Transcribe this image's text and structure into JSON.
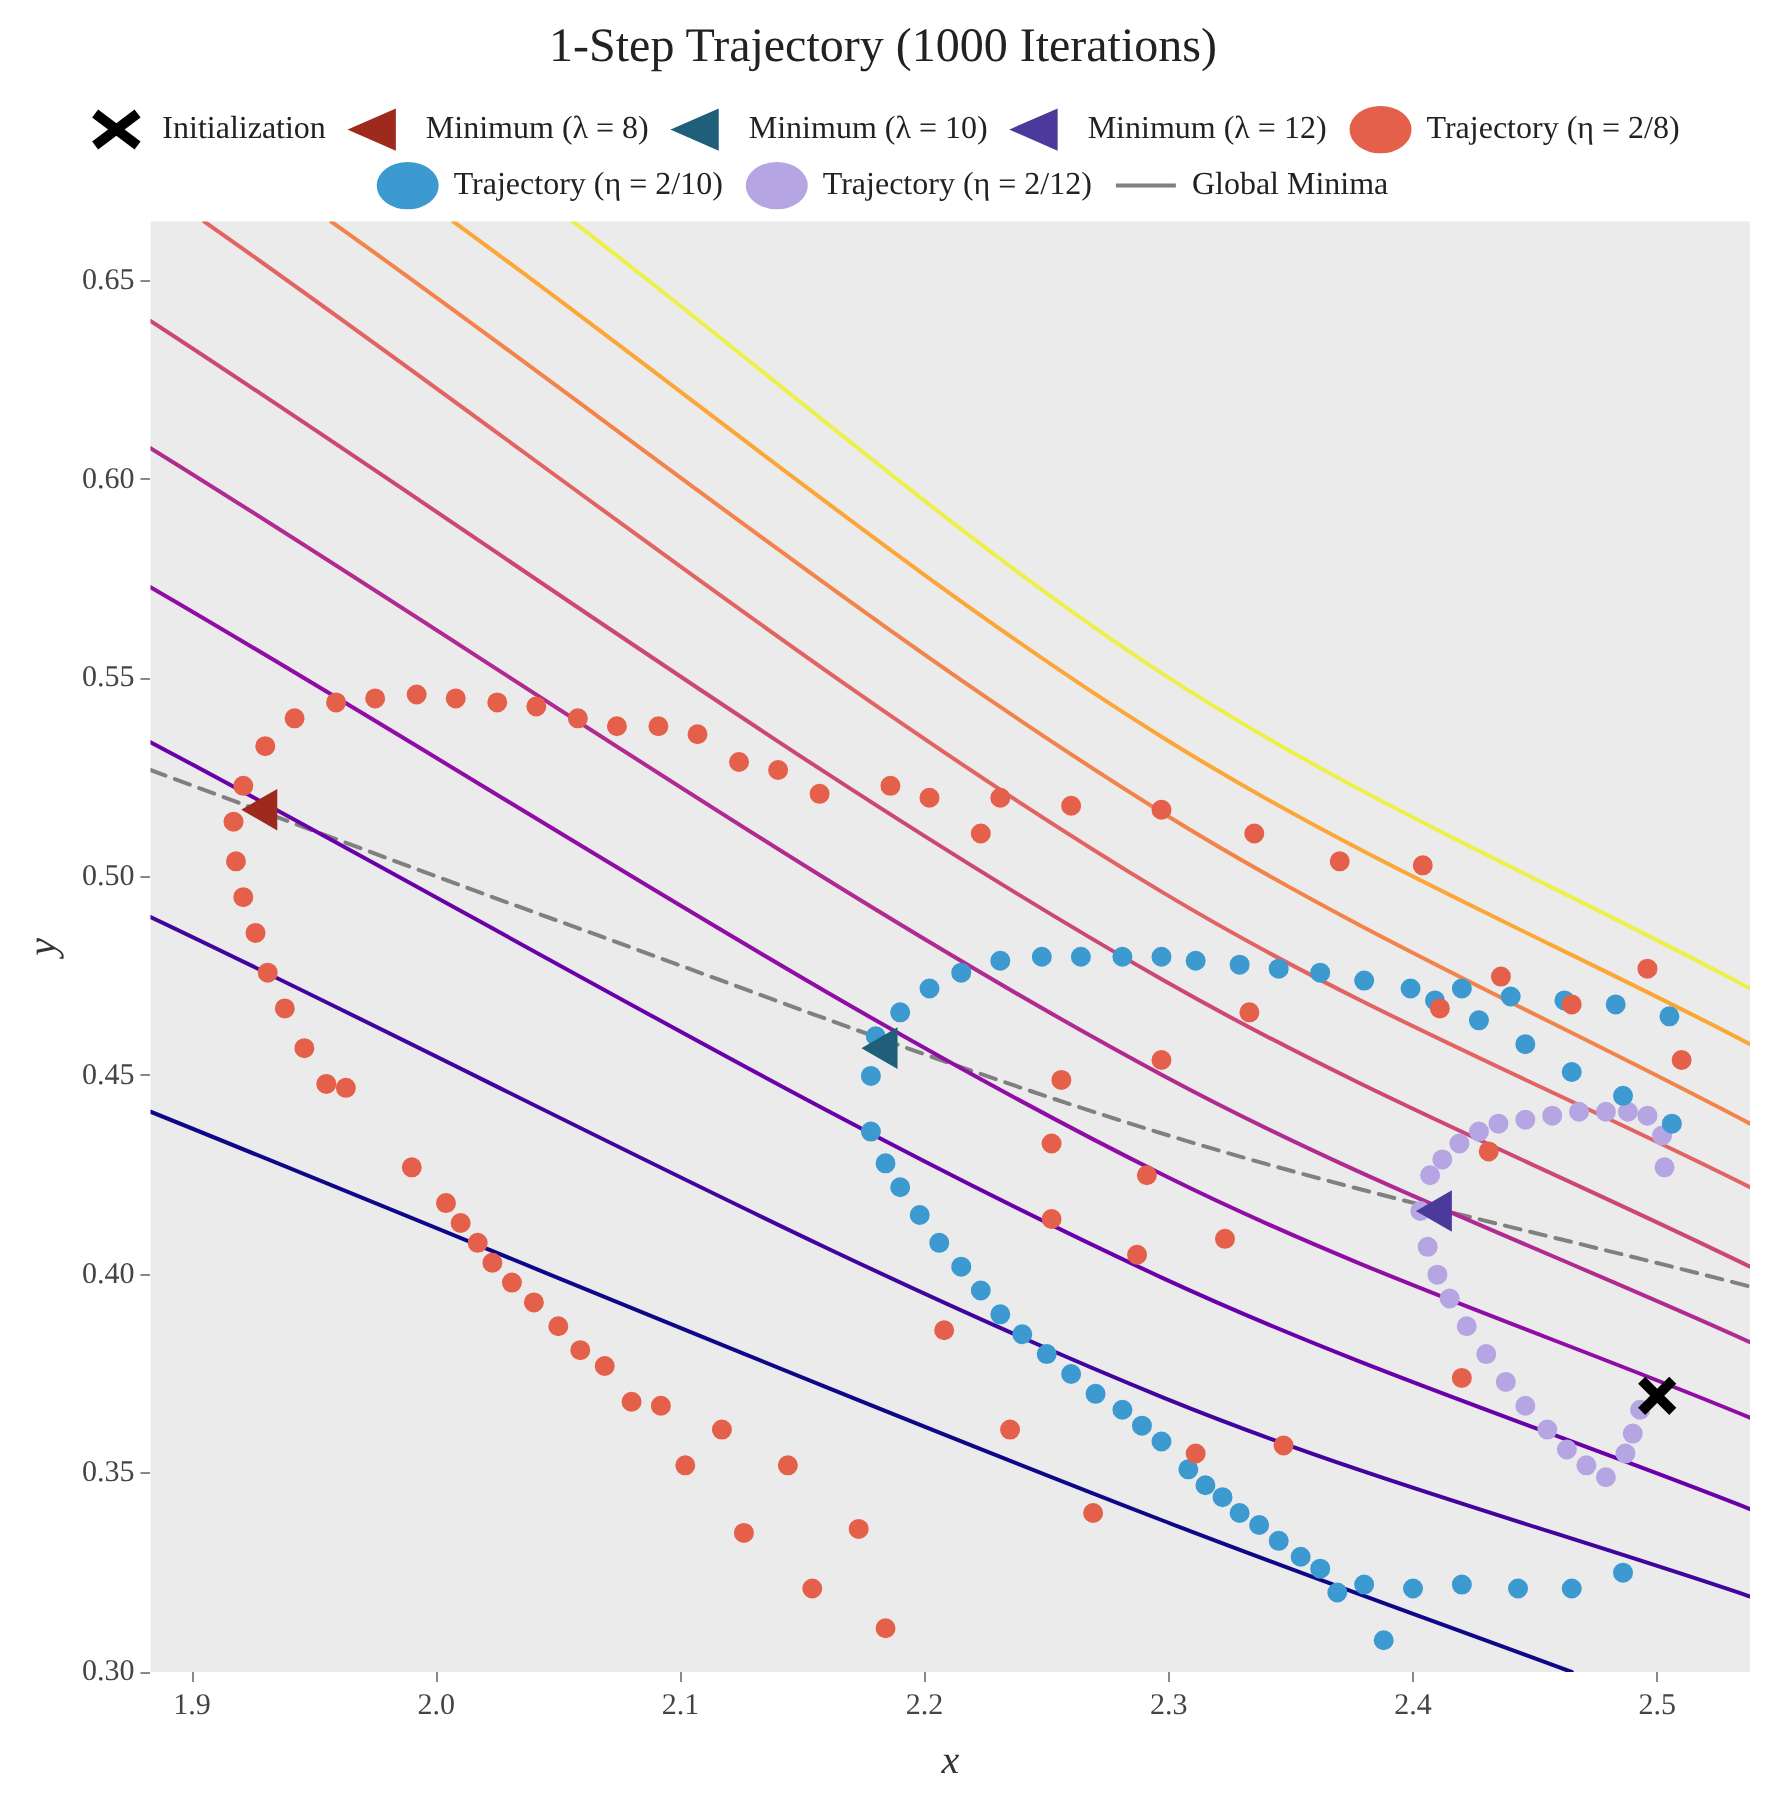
{
  "chart_data": {
    "type": "scatter",
    "title": "1-Step Trajectory (1000 Iterations)",
    "xlabel": "x",
    "ylabel": "y",
    "xlim": [
      1.883,
      2.538
    ],
    "ylim": [
      0.3,
      0.665
    ],
    "xticks": [
      {
        "value": 1.9,
        "label": "1.9"
      },
      {
        "value": 2.0,
        "label": "2.0"
      },
      {
        "value": 2.1,
        "label": "2.1"
      },
      {
        "value": 2.2,
        "label": "2.2"
      },
      {
        "value": 2.3,
        "label": "2.3"
      },
      {
        "value": 2.4,
        "label": "2.4"
      },
      {
        "value": 2.5,
        "label": "2.5"
      }
    ],
    "yticks": [
      {
        "value": 0.3,
        "label": "0.30"
      },
      {
        "value": 0.35,
        "label": "0.35"
      },
      {
        "value": 0.4,
        "label": "0.40"
      },
      {
        "value": 0.45,
        "label": "0.45"
      },
      {
        "value": 0.5,
        "label": "0.50"
      },
      {
        "value": 0.55,
        "label": "0.55"
      },
      {
        "value": 0.6,
        "label": "0.60"
      },
      {
        "value": 0.65,
        "label": "0.65"
      }
    ],
    "legend": "top",
    "series": [
      {
        "type": "line",
        "marker": "none",
        "color": "#0d0887",
        "x": [
          1.883,
          2.298,
          2.465
        ],
        "values": [
          0.441,
          0.338,
          0.3
        ]
      },
      {
        "type": "line",
        "marker": "none",
        "color": "#41049d",
        "x": [
          1.883,
          2.298,
          2.538
        ],
        "values": [
          0.49,
          0.369,
          0.319
        ]
      },
      {
        "type": "line",
        "marker": "none",
        "color": "#6a00a8",
        "x": [
          1.883,
          2.298,
          2.538
        ],
        "values": [
          0.534,
          0.399,
          0.341
        ]
      },
      {
        "type": "line",
        "marker": "none",
        "color": "#8f0da4",
        "x": [
          1.883,
          2.298,
          2.538
        ],
        "values": [
          0.573,
          0.425,
          0.364
        ]
      },
      {
        "type": "line",
        "marker": "none",
        "color": "#b12a90",
        "x": [
          1.883,
          2.298,
          2.538
        ],
        "values": [
          0.608,
          0.45,
          0.383
        ]
      },
      {
        "type": "line",
        "marker": "none",
        "color": "#cc4778",
        "x": [
          1.883,
          2.298,
          2.538
        ],
        "values": [
          0.64,
          0.474,
          0.402
        ]
      },
      {
        "type": "line",
        "marker": "none",
        "color": "#e16462",
        "x": [
          1.905,
          2.298,
          2.538
        ],
        "values": [
          0.665,
          0.496,
          0.422
        ]
      },
      {
        "type": "line",
        "marker": "none",
        "color": "#f2844b",
        "x": [
          1.957,
          2.298,
          2.538
        ],
        "values": [
          0.665,
          0.516,
          0.438
        ]
      },
      {
        "type": "line",
        "marker": "none",
        "color": "#fca636",
        "x": [
          2.007,
          2.298,
          2.538
        ],
        "values": [
          0.665,
          0.535,
          0.458
        ]
      },
      {
        "type": "line",
        "marker": "none",
        "color": "#eef04a",
        "x": [
          2.056,
          2.298,
          2.538
        ],
        "values": [
          0.665,
          0.551,
          0.472
        ]
      },
      {
        "type": "line",
        "marker": "none",
        "line_style": "dashed",
        "name": "Global Minima",
        "color": "#808080",
        "x": [
          1.883,
          2.05,
          2.3,
          2.538
        ],
        "values": [
          0.527,
          0.489,
          0.435,
          0.397
        ]
      },
      {
        "type": "scatter",
        "marker": "triangle",
        "name": "Minimum (λ = 8)",
        "color": "#9e2a1e",
        "x": [
          1.93
        ],
        "values": [
          0.517
        ]
      },
      {
        "type": "scatter",
        "marker": "triangle",
        "name": "Minimum (λ = 10)",
        "color": "#1f5f7a",
        "x": [
          2.184
        ],
        "values": [
          0.457
        ]
      },
      {
        "type": "scatter",
        "marker": "triangle",
        "name": "Minimum (λ = 12)",
        "color": "#4b3a9b",
        "x": [
          2.411
        ],
        "values": [
          0.416
        ]
      },
      {
        "type": "scatter",
        "marker": "cross",
        "name": "Initialization",
        "color": "#000000",
        "x": [
          2.5
        ],
        "values": [
          0.3695
        ]
      },
      {
        "type": "scatter",
        "marker": "circle",
        "name": "Trajectory (η = 2/8)",
        "color": "#e5604a",
        "x": [
          2.157,
          2.14,
          2.124,
          2.107,
          2.091,
          2.074,
          2.058,
          2.041,
          2.025,
          2.008,
          1.992,
          1.975,
          1.959,
          1.942,
          1.93,
          1.921,
          1.917,
          1.918,
          1.921,
          1.926,
          1.931,
          1.938,
          1.946,
          1.955,
          1.963,
          1.99,
          2.004,
          2.01,
          2.017,
          2.023,
          2.031,
          2.04,
          2.05,
          2.059,
          2.069,
          2.08,
          2.092,
          2.117,
          2.102,
          2.144,
          2.126,
          2.173,
          2.154,
          2.184,
          2.208,
          2.235,
          2.269,
          2.252,
          2.287,
          2.291,
          2.252,
          2.256,
          2.186,
          2.202,
          2.223,
          2.231,
          2.26,
          2.297,
          2.335,
          2.37,
          2.404,
          2.436,
          2.465,
          2.496,
          2.51,
          2.333,
          2.411,
          2.297,
          2.431,
          2.323,
          2.42,
          2.347,
          2.311
        ],
        "values": [
          0.521,
          0.527,
          0.529,
          0.536,
          0.538,
          0.538,
          0.54,
          0.543,
          0.544,
          0.545,
          0.546,
          0.545,
          0.544,
          0.54,
          0.533,
          0.523,
          0.514,
          0.504,
          0.495,
          0.486,
          0.476,
          0.467,
          0.457,
          0.448,
          0.447,
          0.427,
          0.418,
          0.413,
          0.408,
          0.403,
          0.398,
          0.393,
          0.387,
          0.381,
          0.377,
          0.368,
          0.367,
          0.361,
          0.352,
          0.352,
          0.335,
          0.336,
          0.321,
          0.311,
          0.386,
          0.361,
          0.34,
          0.414,
          0.405,
          0.425,
          0.433,
          0.449,
          0.523,
          0.52,
          0.511,
          0.52,
          0.518,
          0.517,
          0.511,
          0.504,
          0.503,
          0.475,
          0.468,
          0.477,
          0.454,
          0.466,
          0.467,
          0.454,
          0.431,
          0.409,
          0.374,
          0.357,
          0.355
        ]
      },
      {
        "type": "scatter",
        "marker": "circle",
        "name": "Trajectory (η = 2/10)",
        "color": "#3c9ad1",
        "x": [
          2.42,
          2.44,
          2.462,
          2.483,
          2.505,
          2.427,
          2.446,
          2.465,
          2.486,
          2.506,
          2.409,
          2.399,
          2.38,
          2.362,
          2.345,
          2.329,
          2.311,
          2.297,
          2.281,
          2.264,
          2.248,
          2.231,
          2.215,
          2.202,
          2.19,
          2.18,
          2.178,
          2.178,
          2.184,
          2.19,
          2.198,
          2.206,
          2.215,
          2.223,
          2.231,
          2.24,
          2.25,
          2.26,
          2.27,
          2.281,
          2.289,
          2.297,
          2.308,
          2.315,
          2.322,
          2.329,
          2.337,
          2.345,
          2.354,
          2.362,
          2.369,
          2.38,
          2.4,
          2.42,
          2.443,
          2.465,
          2.486,
          2.388
        ],
        "values": [
          0.472,
          0.47,
          0.469,
          0.468,
          0.465,
          0.464,
          0.458,
          0.451,
          0.445,
          0.438,
          0.469,
          0.472,
          0.474,
          0.476,
          0.477,
          0.478,
          0.479,
          0.48,
          0.48,
          0.48,
          0.48,
          0.479,
          0.476,
          0.472,
          0.466,
          0.46,
          0.45,
          0.436,
          0.428,
          0.422,
          0.415,
          0.408,
          0.402,
          0.396,
          0.39,
          0.385,
          0.38,
          0.375,
          0.37,
          0.366,
          0.362,
          0.358,
          0.351,
          0.347,
          0.344,
          0.34,
          0.337,
          0.333,
          0.329,
          0.326,
          0.32,
          0.322,
          0.321,
          0.322,
          0.321,
          0.321,
          0.325,
          0.308
        ]
      },
      {
        "type": "scatter",
        "marker": "circle",
        "name": "Trajectory (η = 2/12)",
        "color": "#b5a6e3",
        "x": [
          2.493,
          2.49,
          2.487,
          2.479,
          2.471,
          2.463,
          2.455,
          2.446,
          2.438,
          2.43,
          2.422,
          2.415,
          2.41,
          2.406,
          2.403,
          2.407,
          2.412,
          2.419,
          2.427,
          2.435,
          2.446,
          2.457,
          2.468,
          2.479,
          2.488,
          2.496,
          2.502,
          2.503
        ],
        "values": [
          0.366,
          0.36,
          0.355,
          0.349,
          0.352,
          0.356,
          0.361,
          0.367,
          0.373,
          0.38,
          0.387,
          0.394,
          0.4,
          0.407,
          0.416,
          0.425,
          0.429,
          0.433,
          0.436,
          0.438,
          0.439,
          0.44,
          0.441,
          0.441,
          0.441,
          0.44,
          0.435,
          0.427
        ]
      }
    ]
  }
}
